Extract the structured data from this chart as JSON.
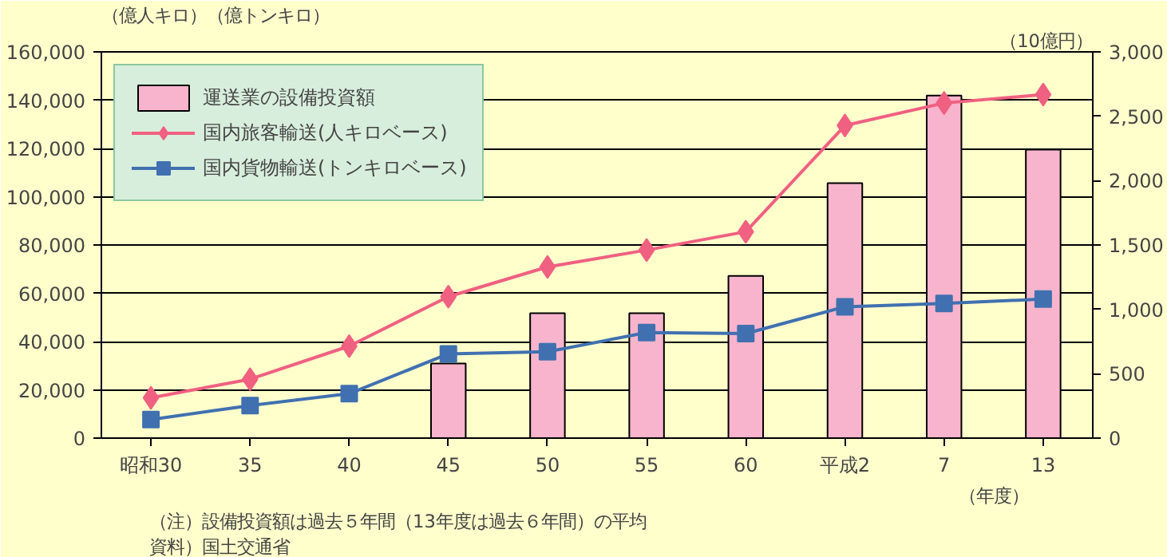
{
  "chart_data": {
    "type": "line",
    "categories": [
      "昭和30",
      "35",
      "40",
      "45",
      "50",
      "55",
      "60",
      "平成2",
      "7",
      "13"
    ],
    "xlabel": "（年度）",
    "ylabel": "（億人キロ）（億トンキロ）",
    "y2label": "（10億円）",
    "ylim": [
      0,
      160000
    ],
    "yticks": [
      {
        "value": 0,
        "label": "0"
      },
      {
        "value": 20000,
        "label": "20,000"
      },
      {
        "value": 40000,
        "label": "40,000"
      },
      {
        "value": 60000,
        "label": "60,000"
      },
      {
        "value": 80000,
        "label": "80,000"
      },
      {
        "value": 100000,
        "label": "100,000"
      },
      {
        "value": 120000,
        "label": "120,000"
      },
      {
        "value": 140000,
        "label": "140,000"
      },
      {
        "value": 160000,
        "label": "160,000"
      }
    ],
    "y2lim": [
      0,
      3000
    ],
    "y2ticks": [
      {
        "value": 0,
        "label": "0"
      },
      {
        "value": 500,
        "label": "500"
      },
      {
        "value": 1000,
        "label": "1,000"
      },
      {
        "value": 1500,
        "label": "1,500"
      },
      {
        "value": 2000,
        "label": "2,000"
      },
      {
        "value": 2500,
        "label": "2,500"
      },
      {
        "value": 3000,
        "label": "3,000"
      }
    ],
    "grid": "y",
    "legend": "top left",
    "series": [
      {
        "name": "運送業の設備投資額",
        "type": "bar",
        "axis": "y2",
        "color": "#f8b4cc",
        "values": [
          null,
          null,
          null,
          580,
          970,
          970,
          1260,
          1980,
          2660,
          2240
        ]
      },
      {
        "name": "国内旅客輸送(人キロベース)",
        "marker": "diamond",
        "color": "#f06080",
        "values": [
          16700,
          24400,
          38100,
          58600,
          70900,
          77900,
          85500,
          129500,
          138800,
          142300
        ]
      },
      {
        "name": "国内貨物輸送(トンキロベース)",
        "marker": "square",
        "color": "#4070b0",
        "values": [
          7700,
          13500,
          18400,
          34900,
          35800,
          43700,
          43300,
          54400,
          55800,
          57600
        ]
      }
    ],
    "annotations": [
      "（注）設備投資額は過去５年間（13年度は過去６年間）の平均",
      "資料）国土交通省"
    ]
  }
}
